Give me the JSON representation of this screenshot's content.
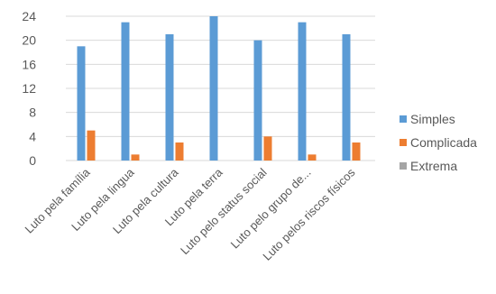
{
  "chart_data": {
    "type": "bar",
    "categories": [
      "Luto pela família",
      "Luto pela lingua",
      "Luto pela cultura",
      "Luto pela terra",
      "Luto pelo status social",
      "Luto pelo grupo de...",
      "Luto pelos riscos físicos"
    ],
    "series": [
      {
        "name": "Simples",
        "values": [
          19,
          23,
          21,
          24,
          20,
          23,
          21
        ],
        "color": "#5b9bd5"
      },
      {
        "name": "Complicada",
        "values": [
          5,
          1,
          3,
          0,
          4,
          1,
          3
        ],
        "color": "#ed7d31"
      },
      {
        "name": "Extrema",
        "values": [
          0,
          0,
          0,
          0,
          0,
          0,
          0
        ],
        "color": "#a5a5a5"
      }
    ],
    "ylim": [
      0,
      24
    ],
    "yticks": [
      0,
      4,
      8,
      12,
      16,
      20,
      24
    ],
    "grid": true,
    "legend_position": "right"
  }
}
